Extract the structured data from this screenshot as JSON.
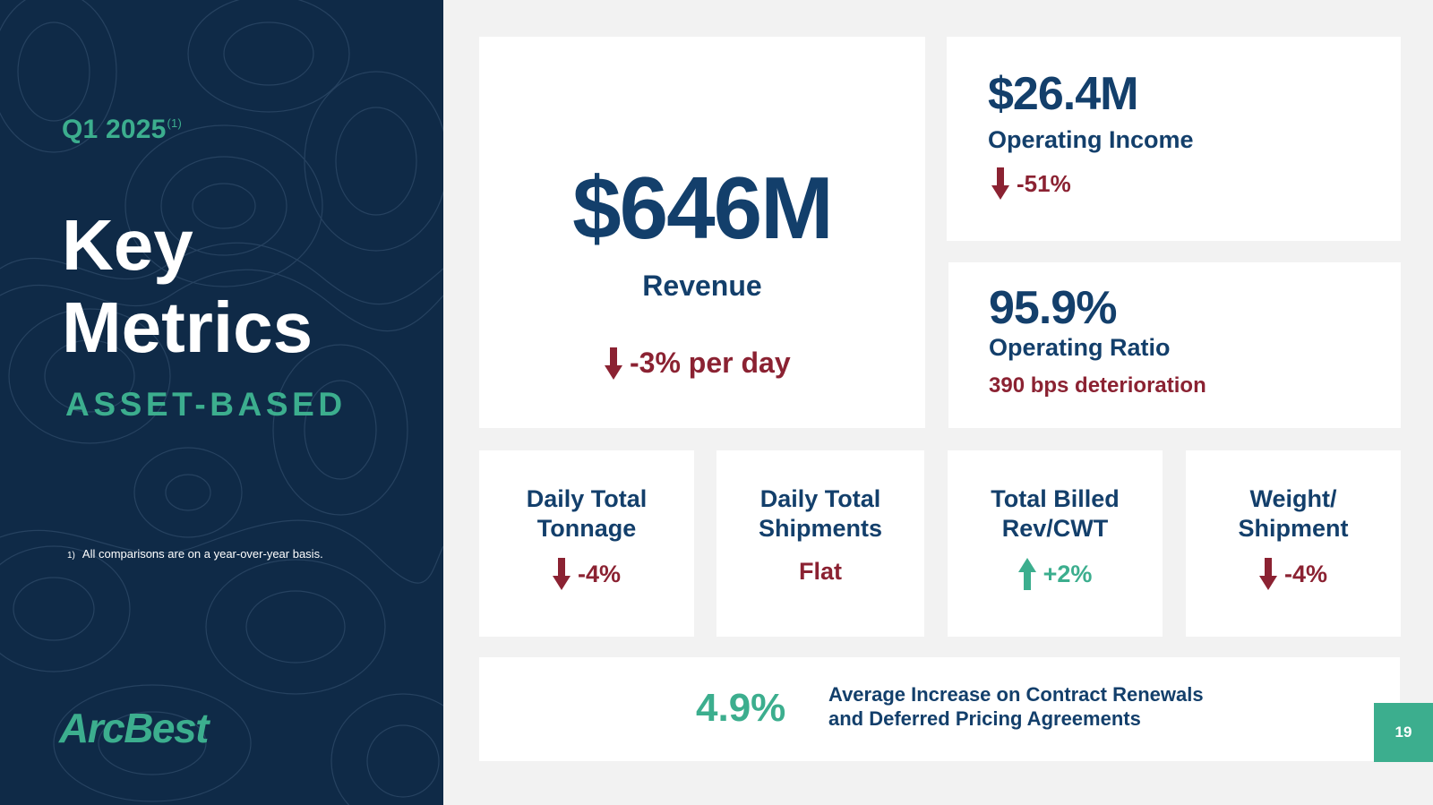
{
  "sidebar": {
    "quarter": "Q1 2025",
    "quarter_note": "(1)",
    "title_line1": "Key",
    "title_line2": "Metrics",
    "subtitle": "ASSET-BASED",
    "footnote_num": "1)",
    "footnote_text": "All comparisons are on a year-over-year basis.",
    "logo": "ArcBest"
  },
  "revenue": {
    "value": "$646M",
    "label": "Revenue",
    "change": "-3% per day"
  },
  "operating_income": {
    "value": "$26.4M",
    "label": "Operating Income",
    "change": "-51%"
  },
  "operating_ratio": {
    "value": "95.9%",
    "label": "Operating Ratio",
    "change": "390 bps deterioration"
  },
  "small_metrics": [
    {
      "line1": "Daily Total",
      "line2": "Tonnage",
      "change": "-4%",
      "direction": "down"
    },
    {
      "line1": "Daily Total",
      "line2": "Shipments",
      "change": "Flat",
      "direction": "flat"
    },
    {
      "line1": "Total Billed",
      "line2": "Rev/CWT",
      "change": "+2%",
      "direction": "up"
    },
    {
      "line1": "Weight/",
      "line2": "Shipment",
      "change": "-4%",
      "direction": "down"
    }
  ],
  "contract": {
    "value": "4.9%",
    "line1": "Average Increase on Contract Renewals",
    "line2": "and Deferred Pricing Agreements"
  },
  "page_number": "19",
  "colors": {
    "navy": "#133f6b",
    "sidebar_bg": "#0f2a47",
    "green": "#3cae8e",
    "red": "#8b2232"
  }
}
